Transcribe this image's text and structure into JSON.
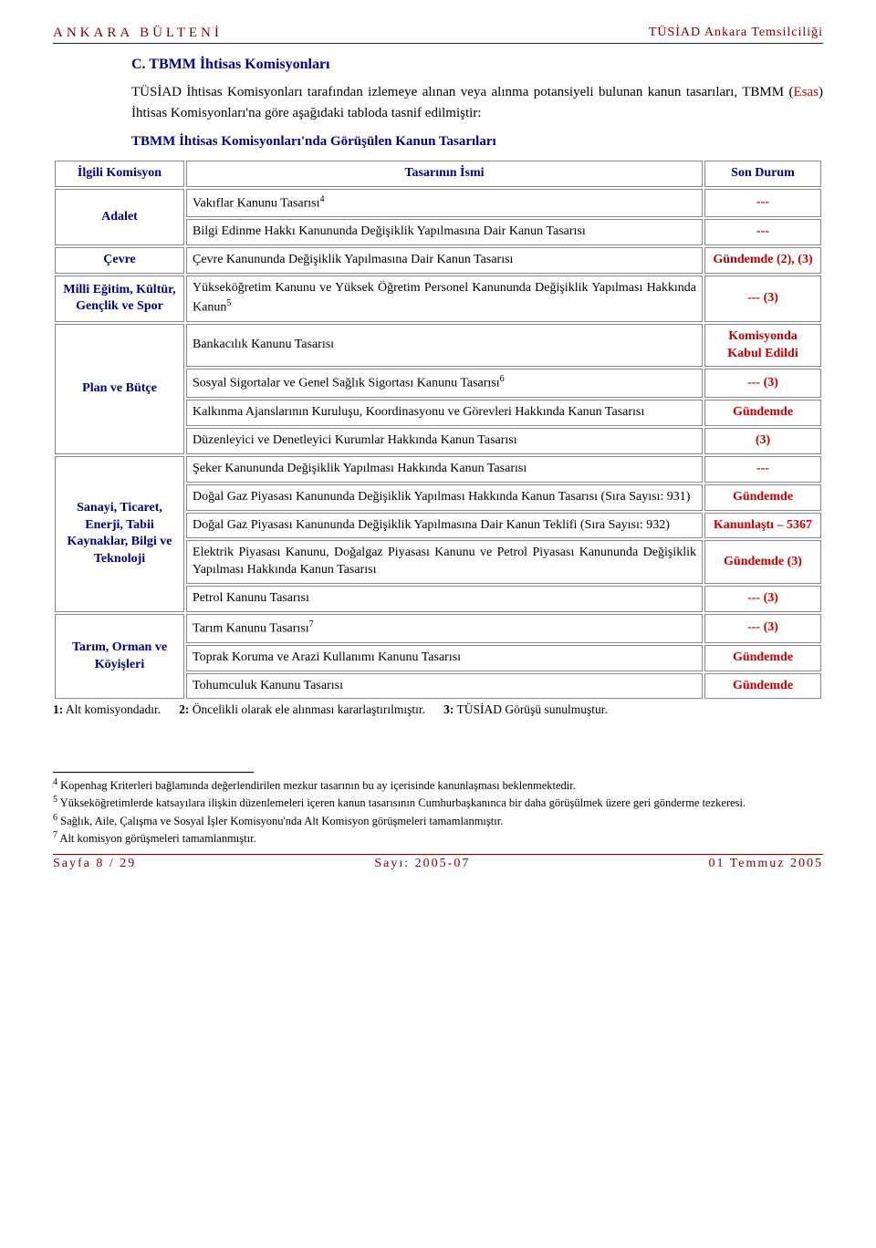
{
  "header": {
    "left": "ANKARA BÜLTENİ",
    "right": "TÜSİAD Ankara Temsilciliği"
  },
  "section": {
    "label": "C.   TBMM İhtisas Komisyonları",
    "intro_pre": "TÜSİAD İhtisas Komisyonları tarafından izlemeye alınan veya alınma potansiyeli bulunan kanun tasarıları, TBMM (",
    "intro_esas": "Esas",
    "intro_post": ") İhtisas Komisyonları'na göre aşağıdaki tabloda tasnif edilmiştir:",
    "subhead": "TBMM İhtisas Komisyonları'nda Görüşülen Kanun Tasarıları"
  },
  "table": {
    "head": {
      "c1": "İlgili Komisyon",
      "c2": "Tasarının İsmi",
      "c3": "Son Durum"
    },
    "groups": [
      {
        "committee": "Adalet",
        "rows": [
          {
            "name": "Vakıflar Kanunu Tasarısı",
            "sup": "4",
            "status": "---"
          },
          {
            "name": "Bilgi Edinme Hakkı Kanununda Değişiklik Yapılmasına Dair Kanun Tasarısı",
            "status": "---"
          }
        ]
      },
      {
        "committee": "Çevre",
        "rows": [
          {
            "name": "Çevre Kanununda Değişiklik Yapılmasına Dair Kanun Tasarısı",
            "status": "Gündemde (2), (3)"
          }
        ]
      },
      {
        "committee": "Milli Eğitim, Kültür, Gençlik ve Spor",
        "rows": [
          {
            "name": "Yükseköğretim Kanunu ve Yüksek Öğretim Personel Kanununda Değişiklik Yapılması Hakkında Kanun",
            "sup": "5",
            "status": "--- (3)"
          }
        ]
      },
      {
        "committee": "Plan ve Bütçe",
        "rows": [
          {
            "name": "Bankacılık Kanunu Tasarısı",
            "status": "Komisyonda Kabul Edildi"
          },
          {
            "name": "Sosyal Sigortalar ve Genel Sağlık Sigortası Kanunu Tasarısı",
            "sup": "6",
            "status": "--- (3)"
          },
          {
            "name": "Kalkınma Ajanslarının Kuruluşu, Koordinasyonu ve Görevleri Hakkında Kanun Tasarısı",
            "status": "Gündemde"
          },
          {
            "name": "Düzenleyici ve Denetleyici Kurumlar Hakkında Kanun Tasarısı",
            "status": "(3)"
          }
        ]
      },
      {
        "committee": "Sanayi, Ticaret, Enerji, Tabii Kaynaklar, Bilgi ve Teknoloji",
        "rows": [
          {
            "name": "Şeker Kanununda Değişiklik Yapılması Hakkında Kanun Tasarısı",
            "status": "---"
          },
          {
            "name": "Doğal Gaz Piyasası Kanununda Değişiklik Yapılması Hakkında Kanun Tasarısı (Sıra Sayısı: 931)",
            "status": "Gündemde"
          },
          {
            "name": "Doğal Gaz Piyasası Kanununda Değişiklik Yapılmasına Dair Kanun Teklifi (Sıra Sayısı: 932)",
            "status": "Kanunlaştı – 5367"
          },
          {
            "name": "Elektrik Piyasası Kanunu, Doğalgaz Piyasası Kanunu ve Petrol Piyasası Kanununda Değişiklik Yapılması Hakkında Kanun Tasarısı",
            "status": "Gündemde (3)"
          },
          {
            "name": "Petrol Kanunu Tasarısı",
            "status": "--- (3)"
          }
        ]
      },
      {
        "committee": "Tarım, Orman ve Köyişleri",
        "rows": [
          {
            "name": "Tarım Kanunu Tasarısı",
            "sup": "7",
            "status": "--- (3)"
          },
          {
            "name": "Toprak Koruma ve Arazi Kullanımı Kanunu Tasarısı",
            "status": "Gündemde"
          },
          {
            "name": "Tohumculuk Kanunu Tasarısı",
            "status": "Gündemde"
          }
        ]
      }
    ]
  },
  "legend": [
    {
      "b": "1:",
      "t": " Alt komisyondadır."
    },
    {
      "b": "2:",
      "t": " Öncelikli olarak ele alınması kararlaştırılmıştır."
    },
    {
      "b": "3:",
      "t": " TÜSİAD Görüşü sunulmuştur."
    }
  ],
  "footnotes": [
    {
      "n": "4",
      "t": " Kopenhag Kriterleri bağlamında değerlendirilen mezkur tasarının bu ay içerisinde kanunlaşması beklenmektedir."
    },
    {
      "n": "5",
      "t": " Yükseköğretimlerde katsayılara ilişkin düzenlemeleri içeren kanun tasarısının Cumhurbaşkanınca bir daha görüşülmek üzere geri gönderme tezkeresi."
    },
    {
      "n": "6",
      "t": " Sağlık, Aile, Çalışma ve Sosyal İşler Komisyonu'nda Alt Komisyon görüşmeleri tamamlanmıştır."
    },
    {
      "n": "7",
      "t": " Alt komisyon görüşmeleri tamamlanmıştır."
    }
  ],
  "footer": {
    "left": "Sayfa 8 / 29",
    "mid": "Sayı: 2005-07",
    "right": "01 Temmuz 2005"
  }
}
